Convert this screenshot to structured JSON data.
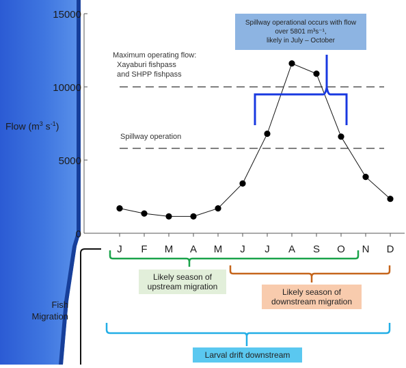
{
  "chart_data": {
    "type": "line",
    "ylabel_prefix": "Flow (m",
    "ylabel_sup1": "3",
    "ylabel_mid": " s",
    "ylabel_sup2": "-1",
    "ylabel_suffix": ")",
    "ylim": [
      0,
      15000
    ],
    "yticks": [
      "0",
      "5000",
      "10000",
      "15000"
    ],
    "ytick_values": [
      0,
      5000,
      10000,
      15000
    ],
    "categories": [
      "J",
      "F",
      "M",
      "A",
      "M",
      "J",
      "J",
      "A",
      "S",
      "O",
      "N",
      "D"
    ],
    "series": [
      {
        "values": [
          1700,
          1350,
          1150,
          1150,
          1700,
          3400,
          6800,
          11600,
          10900,
          6600,
          3850,
          2350
        ]
      }
    ],
    "reference_lines": [
      {
        "value": 10000,
        "label_lines": [
          "Maximum operating flow:",
          "Xayaburi fishpass",
          "and SHPP fishpass"
        ]
      },
      {
        "value": 5801,
        "label_lines": [
          "Spillway operation"
        ]
      }
    ],
    "callout": {
      "line1": "Spillway operational occurs with flow",
      "line2": "over 5801 m³s⁻¹,",
      "line3": "likely in July – October"
    }
  },
  "fish_migration": {
    "label_line1": "Fish",
    "label_line2": "Migration",
    "upstream": {
      "line1": "Likely season of",
      "line2": "upstream migration"
    },
    "downstream": {
      "line1": "Likely season of",
      "line2": "downstream migration"
    },
    "larval": {
      "label": "Larval drift downstream"
    }
  },
  "colors": {
    "green": "#1aa34a",
    "orange": "#c5651b",
    "cyan": "#22aee6",
    "blue_brace": "#1838e0",
    "callout_fill": "#8db4e2",
    "upstream_fill": "#e2efda",
    "downstream_fill": "#f8cbad",
    "larval_fill": "#5ac8f0"
  }
}
